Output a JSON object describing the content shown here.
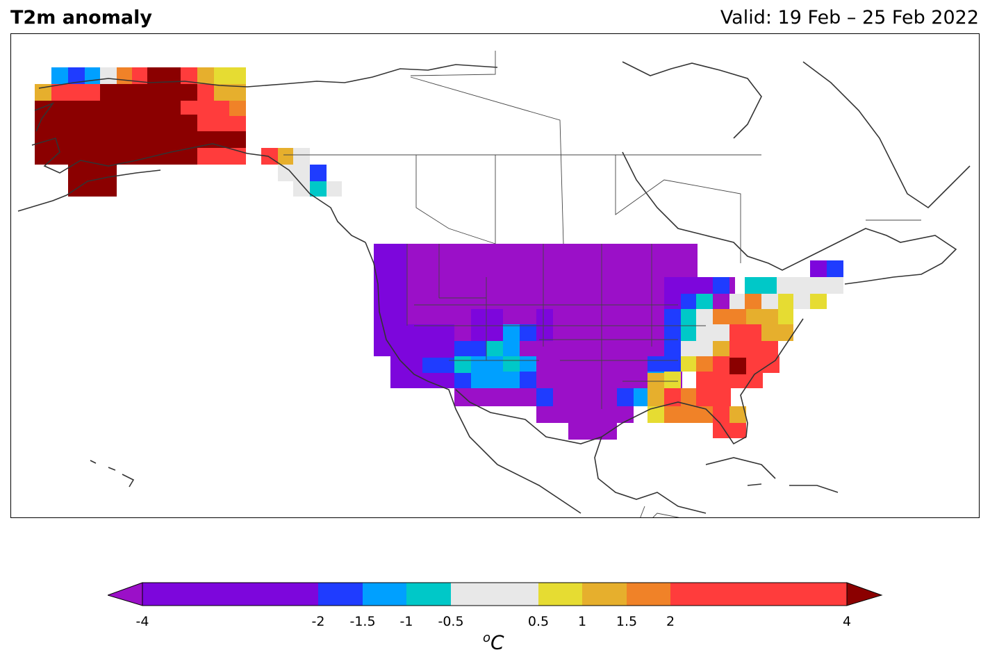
{
  "title": "T2m anomaly",
  "valid": "Valid: 19 Feb – 25 Feb 2022",
  "colorbar": {
    "unit_sup": "o",
    "unit_main": "C",
    "ticks": [
      {
        "label": "-4",
        "value": -4
      },
      {
        "label": "-2",
        "value": -2
      },
      {
        "label": "-1.5",
        "value": -1.5
      },
      {
        "label": "-1",
        "value": -1
      },
      {
        "label": "-0.5",
        "value": -0.5
      },
      {
        "label": "0.5",
        "value": 0.5
      },
      {
        "label": "1",
        "value": 1
      },
      {
        "label": "1.5",
        "value": 1.5
      },
      {
        "label": "2",
        "value": 2
      },
      {
        "label": "4",
        "value": 4
      }
    ],
    "colors": {
      "under": "#9b10c8",
      "lt_-2": "#7d06dc",
      "-2_-1.5": "#1f3cff",
      "-1.5_-1": "#00a0ff",
      "-1_-0.5": "#00c8c8",
      "-0.5_0.5": "#e8e8e8",
      "0.5_1": "#e6dc32",
      "1_1.5": "#e6af2d",
      "1.5_2": "#f08228",
      "2_4": "#ff3c3c",
      "over": "#8b0000"
    }
  }
}
